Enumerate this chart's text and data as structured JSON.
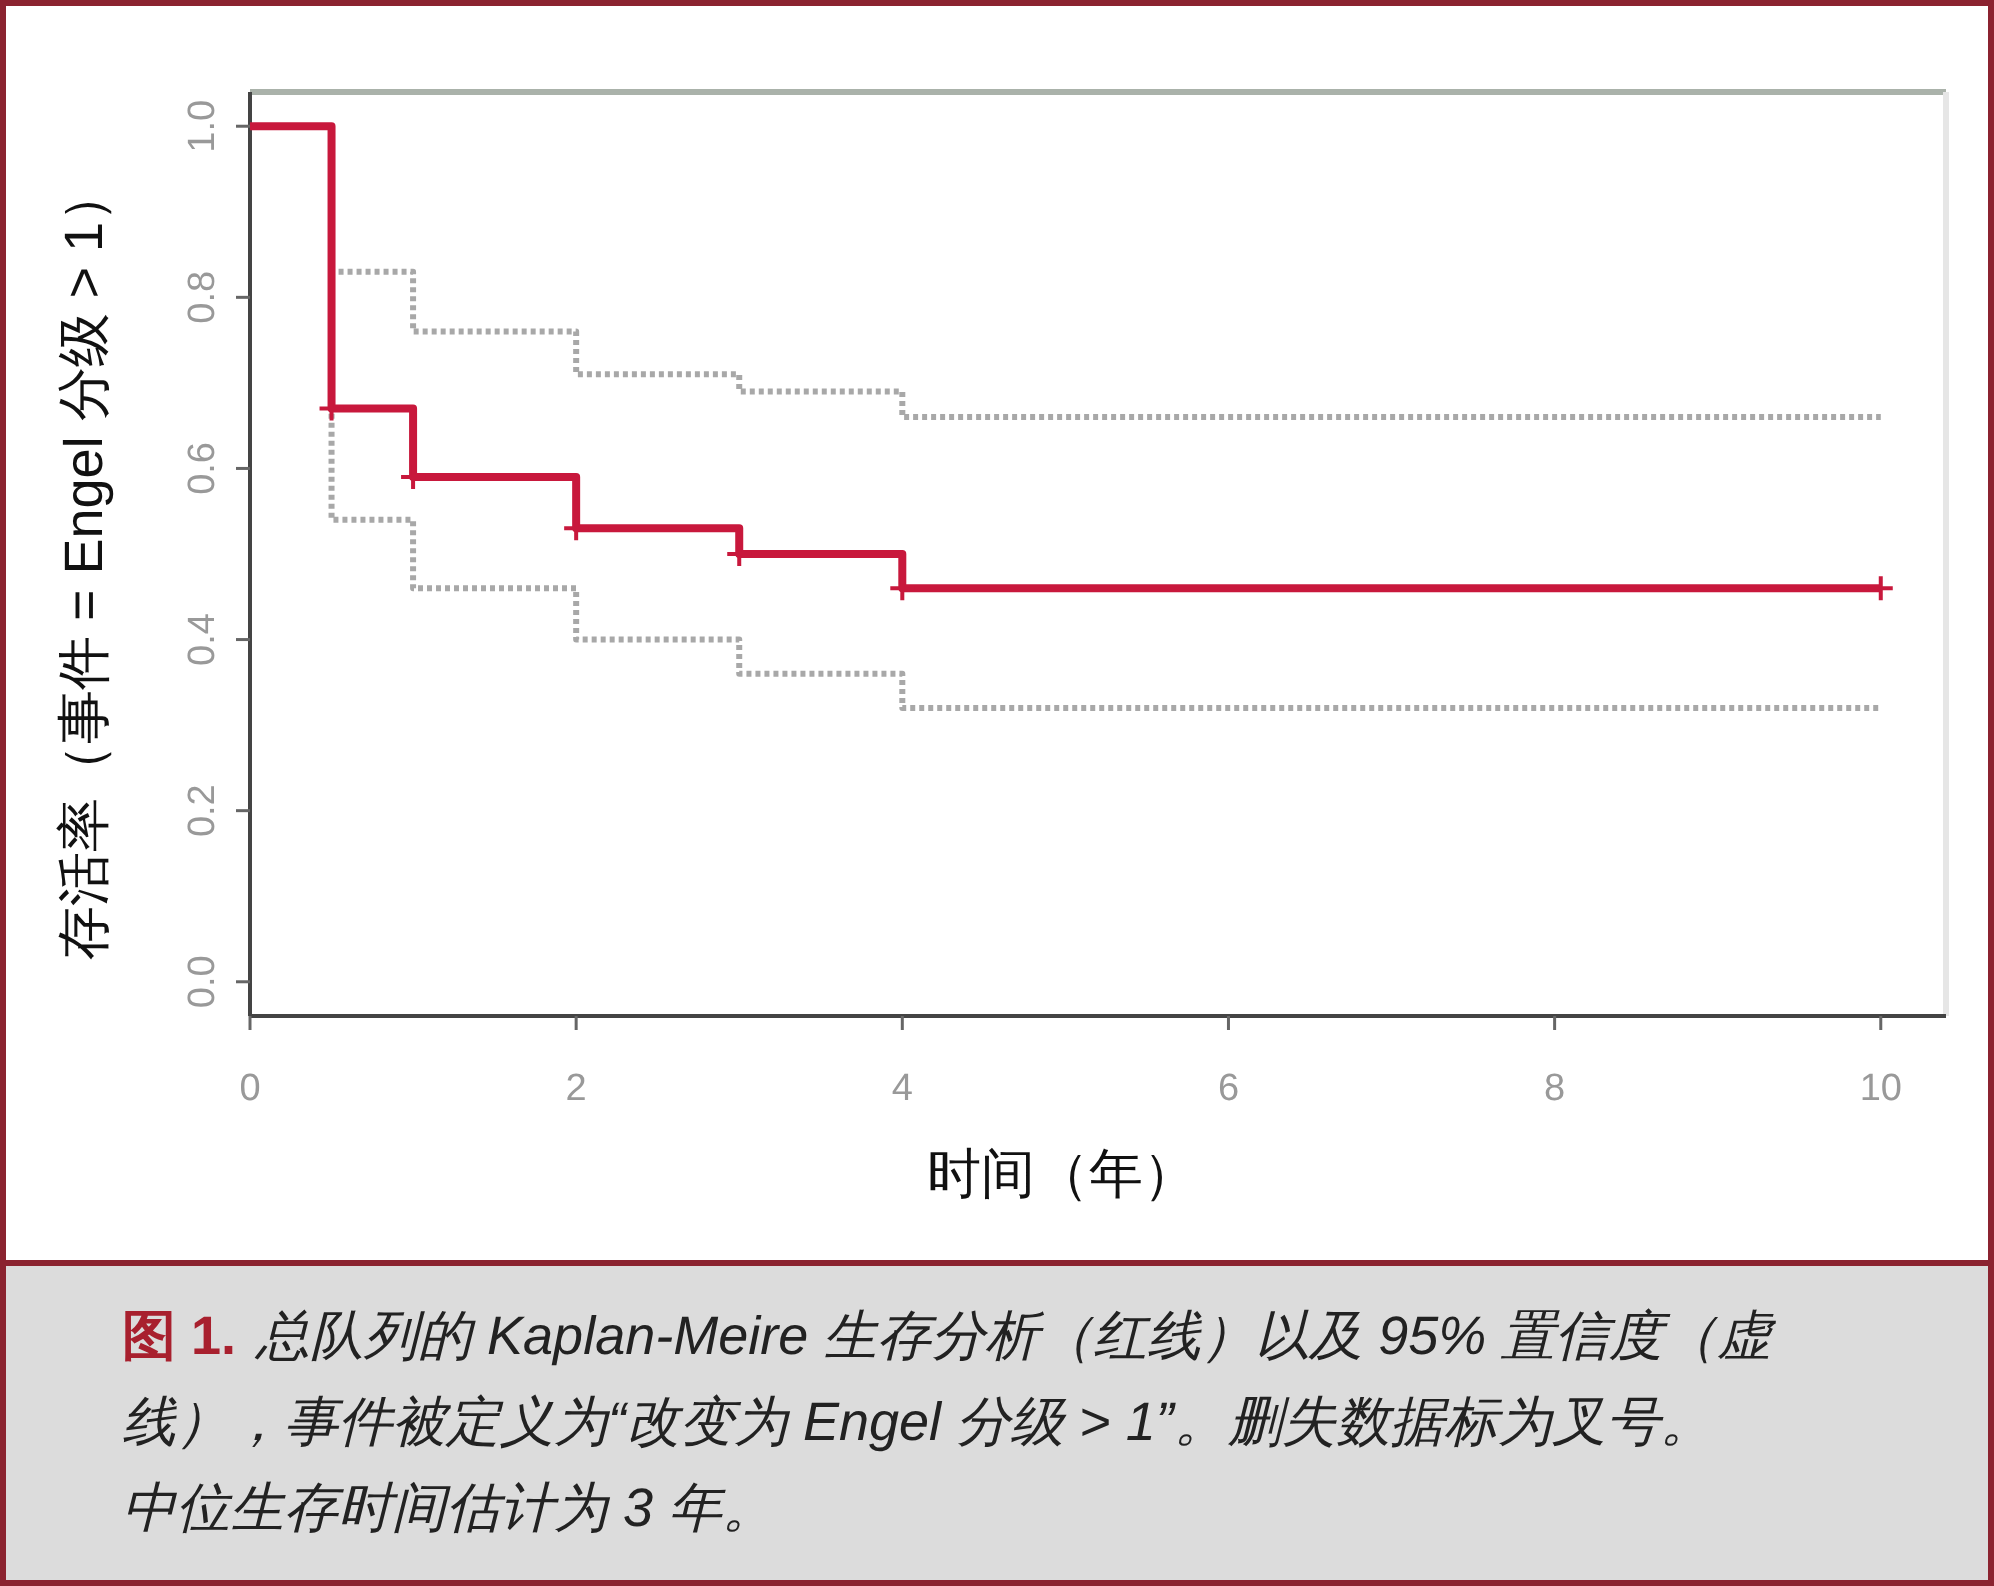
{
  "chart_data": {
    "type": "step",
    "xlabel": "时间（年）",
    "ylabel": "存活率（事件 = Engel 分级 > 1）",
    "annotations": [
      "图 1.",
      "总队列的 Kaplan-Meire 生存分析（红线）以及 95% 置信度（虚",
      "线），事件被定义为“改变为 Engel 分级 > 1”。删失数据标为叉号。",
      "中位生存时间估计为 3 年。"
    ],
    "xlim": [
      0,
      10.4
    ],
    "ylim": [
      -0.04,
      1.04
    ],
    "xticks": [
      0,
      2,
      4,
      6,
      8,
      10
    ],
    "yticks": [
      {
        "value": 0,
        "label": "0.0"
      },
      0.2,
      0.4,
      0.6,
      0.8,
      {
        "value": 1,
        "label": "1.0"
      }
    ],
    "series": [
      {
        "color": "#a8a8a8",
        "line_style": "dotted",
        "x": [
          0,
          0.5,
          1,
          2,
          3,
          4,
          10
        ],
        "values": [
          1,
          0.83,
          0.76,
          0.71,
          0.69,
          0.66,
          0.66
        ]
      },
      {
        "color": "#a8a8a8",
        "line_style": "dotted",
        "x": [
          0,
          0.5,
          1,
          2,
          3,
          4,
          10
        ],
        "values": [
          1,
          0.54,
          0.46,
          0.4,
          0.36,
          0.32,
          0.32
        ]
      },
      {
        "color": "#c8183c",
        "line_style": "solid",
        "x": [
          0,
          0.5,
          1,
          2,
          3,
          4,
          10
        ],
        "values": [
          1,
          0.67,
          0.59,
          0.53,
          0.5,
          0.46,
          0.46
        ]
      },
      {
        "type": "scatter",
        "color": "#c8183c",
        "marker": "cross",
        "x": [
          0.5,
          1,
          2,
          3,
          4,
          10
        ],
        "values": [
          0.67,
          0.59,
          0.53,
          0.5,
          0.46,
          0.46
        ]
      }
    ]
  }
}
